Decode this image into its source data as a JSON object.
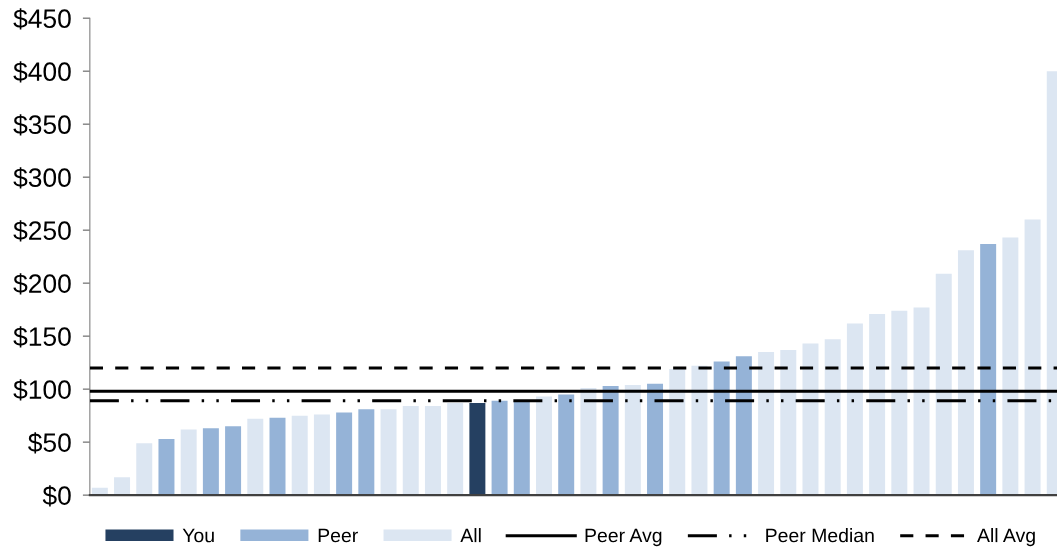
{
  "chart_data": {
    "type": "bar",
    "stacked": true,
    "categories": [
      null,
      null,
      null,
      null,
      null,
      null,
      null,
      null,
      null,
      null,
      null,
      null,
      null,
      null,
      null,
      null,
      null,
      null,
      null,
      null,
      null,
      null,
      null,
      null,
      null,
      null,
      null,
      null,
      null,
      null,
      null,
      null,
      null,
      null,
      null,
      null,
      null,
      null,
      null,
      null,
      null,
      null,
      null,
      null
    ],
    "series": [
      {
        "name": "You",
        "color": "#254061",
        "values": [
          null,
          null,
          null,
          null,
          null,
          null,
          null,
          null,
          null,
          null,
          null,
          null,
          null,
          null,
          null,
          null,
          null,
          87,
          null,
          null,
          null,
          null,
          null,
          null,
          null,
          null,
          null,
          null,
          null,
          null,
          null,
          null,
          null,
          null,
          null,
          null,
          null,
          null,
          null,
          null,
          null,
          null,
          null,
          null
        ]
      },
      {
        "name": "Peer",
        "color": "#95b3d7",
        "values": [
          null,
          null,
          null,
          53,
          null,
          63,
          65,
          null,
          73,
          null,
          null,
          78,
          81,
          null,
          null,
          null,
          null,
          null,
          89,
          89,
          null,
          95,
          null,
          103,
          null,
          105,
          null,
          null,
          126,
          131,
          null,
          null,
          null,
          null,
          null,
          null,
          null,
          null,
          null,
          null,
          237,
          null,
          null,
          null
        ]
      },
      {
        "name": "All",
        "color": "#dce6f2",
        "values": [
          7,
          17,
          49,
          null,
          62,
          null,
          null,
          72,
          null,
          75,
          76,
          null,
          null,
          81,
          84,
          84,
          87,
          null,
          null,
          null,
          93,
          null,
          101,
          null,
          104,
          null,
          119,
          122,
          null,
          null,
          135,
          137,
          143,
          147,
          162,
          171,
          174,
          177,
          209,
          231,
          null,
          243,
          260,
          400
        ]
      }
    ],
    "ylim": [
      0,
      450
    ],
    "yticks": [
      {
        "value": 0,
        "label": "$0"
      },
      {
        "value": 50,
        "label": "$50"
      },
      {
        "value": 100,
        "label": "$100"
      },
      {
        "value": 150,
        "label": "$150"
      },
      {
        "value": 200,
        "label": "$200"
      },
      {
        "value": 250,
        "label": "$250"
      },
      {
        "value": 300,
        "label": "$300"
      },
      {
        "value": 350,
        "label": "$350"
      },
      {
        "value": 400,
        "label": "$400"
      },
      {
        "value": 450,
        "label": "$450"
      }
    ],
    "ref_lines": [
      {
        "axis": "y",
        "value": 98,
        "label": "Peer Avg",
        "color": "#000000",
        "line_style": "solid"
      },
      {
        "axis": "y",
        "value": 89,
        "label": "Peer Median",
        "color": "#000000",
        "line_style": "dashdotdot"
      },
      {
        "axis": "y",
        "value": 120,
        "label": "All Avg",
        "color": "#000000",
        "line_style": "dashed"
      }
    ],
    "legend": "bottom"
  }
}
